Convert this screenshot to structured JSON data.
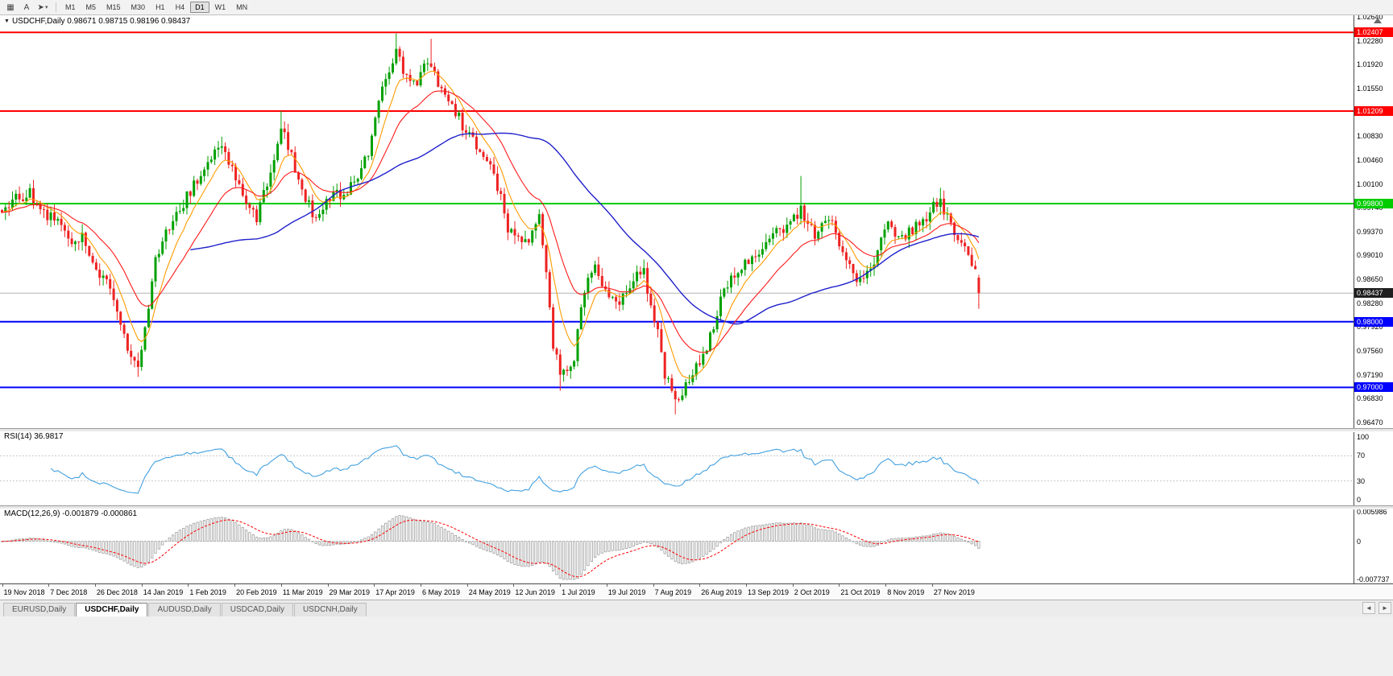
{
  "window": {
    "background": "#f0f0f0"
  },
  "toolbar": {
    "tools": [
      {
        "name": "grid-tool",
        "glyph": "▦"
      },
      {
        "name": "text-tool",
        "glyph": "A"
      },
      {
        "name": "draw-tool",
        "glyph": "➤",
        "caret": "▾"
      }
    ],
    "timeframes": [
      "M1",
      "M5",
      "M15",
      "M30",
      "H1",
      "H4",
      "D1",
      "W1",
      "MN"
    ],
    "active_timeframe": "D1"
  },
  "chart": {
    "collapse_glyph": "▼",
    "title_text": "USDCHF,Daily 0.98671 0.98715 0.98196 0.98437"
  },
  "chart_data": {
    "type": "candlestick",
    "symbol": "USDCHF",
    "period": "Daily",
    "quote": {
      "open": 0.98671,
      "high": 0.98715,
      "low": 0.98196,
      "close": 0.98437
    },
    "candle_count": 281,
    "up_color": "#00a000",
    "down_color": "#ee2222",
    "y_axis": {
      "top_price": 1.0268,
      "bottom_price": 0.9638,
      "ticks": [
        "1.02640",
        "1.02280",
        "1.01920",
        "1.01550",
        "1.01190",
        "1.00830",
        "1.00460",
        "1.00100",
        "0.99740",
        "0.99370",
        "0.99010",
        "0.98650",
        "0.98280",
        "0.97920",
        "0.97560",
        "0.97190",
        "0.96830",
        "0.96470"
      ]
    },
    "x_axis": {
      "dates": [
        "19 Nov 2018",
        "7 Dec 2018",
        "26 Dec 2018",
        "14 Jan 2019",
        "1 Feb 2019",
        "20 Feb 2019",
        "11 Mar 2019",
        "29 Mar 2019",
        "17 Apr 2019",
        "6 May 2019",
        "24 May 2019",
        "12 Jun 2019",
        "1 Jul 2019",
        "19 Jul 2019",
        "7 Aug 2019",
        "26 Aug 2019",
        "13 Sep 2019",
        "2 Oct 2019",
        "21 Oct 2019",
        "8 Nov 2019",
        "27 Nov 2019"
      ],
      "bars_per_label": 13.33
    },
    "price_path": [
      [
        0,
        0.9962
      ],
      [
        4,
        0.9988
      ],
      [
        8,
        0.9996
      ],
      [
        12,
        0.9966
      ],
      [
        16,
        0.995
      ],
      [
        20,
        0.992
      ],
      [
        23,
        0.993
      ],
      [
        27,
        0.9878
      ],
      [
        31,
        0.9858
      ],
      [
        34,
        0.9788
      ],
      [
        37,
        0.9745
      ],
      [
        39,
        0.9728
      ],
      [
        41,
        0.979
      ],
      [
        44,
        0.99
      ],
      [
        47,
        0.9935
      ],
      [
        50,
        0.996
      ],
      [
        54,
        1.0
      ],
      [
        58,
        1.003
      ],
      [
        61,
        1.0062
      ],
      [
        63,
        1.007
      ],
      [
        66,
        1.003
      ],
      [
        69,
        0.999
      ],
      [
        73,
        0.9958
      ],
      [
        76,
        1.001
      ],
      [
        80,
        1.01
      ],
      [
        82,
        1.0068
      ],
      [
        85,
        1.002
      ],
      [
        89,
        0.9962
      ],
      [
        92,
        0.9975
      ],
      [
        95,
        0.999
      ],
      [
        99,
        1.0
      ],
      [
        102,
        1.0015
      ],
      [
        105,
        1.006
      ],
      [
        107,
        1.011
      ],
      [
        110,
        1.017
      ],
      [
        113,
        1.0208
      ],
      [
        115,
        1.0185
      ],
      [
        117,
        1.016
      ],
      [
        119,
        1.0168
      ],
      [
        121,
        1.0192
      ],
      [
        123,
        1.0196
      ],
      [
        125,
        1.016
      ],
      [
        128,
        1.014
      ],
      [
        131,
        1.011
      ],
      [
        134,
        1.008
      ],
      [
        137,
        1.006
      ],
      [
        140,
        1.004
      ],
      [
        143,
        0.999
      ],
      [
        145,
        0.994
      ],
      [
        148,
        0.993
      ],
      [
        151,
        0.9928
      ],
      [
        154,
        0.9958
      ],
      [
        156,
        0.988
      ],
      [
        158,
        0.9768
      ],
      [
        160,
        0.9715
      ],
      [
        162,
        0.9728
      ],
      [
        164,
        0.9748
      ],
      [
        166,
        0.982
      ],
      [
        168,
        0.9868
      ],
      [
        170,
        0.9888
      ],
      [
        172,
        0.9862
      ],
      [
        174,
        0.984
      ],
      [
        176,
        0.9822
      ],
      [
        178,
        0.9838
      ],
      [
        181,
        0.9868
      ],
      [
        184,
        0.9878
      ],
      [
        186,
        0.982
      ],
      [
        188,
        0.979
      ],
      [
        190,
        0.9722
      ],
      [
        193,
        0.9682
      ],
      [
        195,
        0.9694
      ],
      [
        197,
        0.9712
      ],
      [
        199,
        0.973
      ],
      [
        201,
        0.9748
      ],
      [
        203,
        0.9778
      ],
      [
        206,
        0.983
      ],
      [
        209,
        0.9868
      ],
      [
        212,
        0.9888
      ],
      [
        215,
        0.99
      ],
      [
        218,
        0.9912
      ],
      [
        220,
        0.992
      ],
      [
        223,
        0.9942
      ],
      [
        226,
        0.9948
      ],
      [
        229,
        0.9972
      ],
      [
        231,
        0.9952
      ],
      [
        233,
        0.9935
      ],
      [
        235,
        0.9948
      ],
      [
        237,
        0.9962
      ],
      [
        239,
        0.9936
      ],
      [
        241,
        0.9906
      ],
      [
        244,
        0.9876
      ],
      [
        246,
        0.9858
      ],
      [
        248,
        0.9875
      ],
      [
        250,
        0.9892
      ],
      [
        252,
        0.992
      ],
      [
        254,
        0.9944
      ],
      [
        256,
        0.9938
      ],
      [
        258,
        0.9928
      ],
      [
        260,
        0.994
      ],
      [
        263,
        0.9945
      ],
      [
        266,
        0.997
      ],
      [
        269,
        0.9984
      ],
      [
        271,
        0.9958
      ],
      [
        273,
        0.9936
      ],
      [
        275,
        0.9918
      ],
      [
        277,
        0.99
      ],
      [
        279,
        0.988
      ],
      [
        280,
        0.98437
      ]
    ],
    "spikes": [
      {
        "index": 39,
        "low": 0.9716
      },
      {
        "index": 63,
        "high": 1.0082
      },
      {
        "index": 80,
        "high": 1.0121
      },
      {
        "index": 113,
        "high": 1.0239
      },
      {
        "index": 123,
        "high": 1.0231
      },
      {
        "index": 160,
        "low": 0.9695
      },
      {
        "index": 193,
        "low": 0.9659
      },
      {
        "index": 229,
        "high": 1.0022
      },
      {
        "index": 269,
        "high": 1.0004
      }
    ],
    "levels": [
      {
        "label": "1.02407",
        "price": 1.02407,
        "color": "#ff0000"
      },
      {
        "label": "1.01209",
        "price": 1.01209,
        "color": "#ff0000"
      },
      {
        "label": "0.99800",
        "price": 0.998,
        "color": "#00cc00"
      },
      {
        "label": "0.98000",
        "price": 0.98,
        "color": "#0000ff"
      },
      {
        "label": "0.97000",
        "price": 0.97,
        "color": "#0000ff"
      }
    ],
    "current_price": {
      "label": "0.98437",
      "value": 0.98437,
      "tag_color": "#1f1f1f"
    },
    "moving_averages": [
      {
        "period": 8,
        "type": "ema",
        "color": "#ff9c00"
      },
      {
        "period": 21,
        "type": "ema",
        "color": "#ff1a1a"
      },
      {
        "period": 55,
        "type": "sma",
        "color": "#2020cc"
      }
    ],
    "rsi": {
      "label": "RSI(14) 36.9817",
      "period": 14,
      "value": 36.9817,
      "color": "#42a0e0",
      "level_lines": [
        70,
        30
      ],
      "ticks": [
        "100",
        "70",
        "30",
        "0"
      ]
    },
    "macd": {
      "label": "MACD(12,26,9) -0.001879 -0.000861",
      "fast": 12,
      "slow": 26,
      "signal": 9,
      "macd_value": -0.001879,
      "signal_value": -0.000861,
      "histogram_color": "#9e9e9e",
      "signal_color": "#ff0000",
      "ticks": [
        "0.005986",
        "0",
        "-0.007737"
      ],
      "max": 0.005986,
      "min": -0.007737
    }
  },
  "tabs": {
    "items": [
      "EURUSD,Daily",
      "USDCHF,Daily",
      "AUDUSD,Daily",
      "USDCAD,Daily",
      "USDCNH,Daily"
    ],
    "active": "USDCHF,Daily",
    "scroll_left_glyph": "◄",
    "scroll_right_glyph": "►"
  }
}
